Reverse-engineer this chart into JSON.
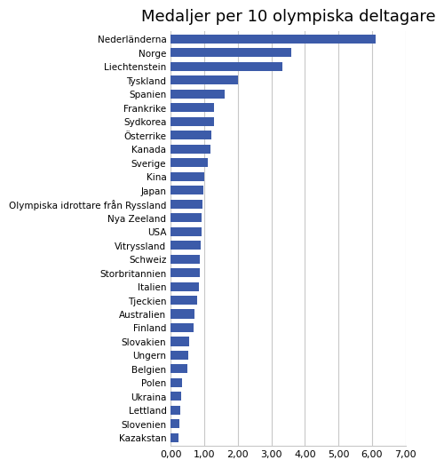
{
  "title": "Medaljer per 10 olympiska deltagare",
  "categories": [
    "Nederländerna",
    "Norge",
    "Liechtenstein",
    "Tyskland",
    "Spanien",
    "Frankrike",
    "Sydkorea",
    "Österrike",
    "Kanada",
    "Sverige",
    "Kina",
    "Japan",
    "Olympiska idrottare från Ryssland",
    "Nya Zeeland",
    "USA",
    "Vitryssland",
    "Schweiz",
    "Storbritannien",
    "Italien",
    "Tjeckien",
    "Australien",
    "Finland",
    "Slovakien",
    "Ungern",
    "Belgien",
    "Polen",
    "Ukraina",
    "Lettland",
    "Slovenien",
    "Kazakstan"
  ],
  "values": [
    6.1,
    3.6,
    3.33,
    2.0,
    1.6,
    1.3,
    1.28,
    1.22,
    1.18,
    1.1,
    1.0,
    0.97,
    0.95,
    0.93,
    0.92,
    0.9,
    0.88,
    0.86,
    0.84,
    0.78,
    0.72,
    0.68,
    0.55,
    0.53,
    0.5,
    0.35,
    0.3,
    0.28,
    0.27,
    0.22
  ],
  "bar_color": "#3C5BA9",
  "xlim": [
    0,
    7.0
  ],
  "xticks": [
    0.0,
    1.0,
    2.0,
    3.0,
    4.0,
    5.0,
    6.0,
    7.0
  ],
  "xticklabels": [
    "0,00",
    "1,00",
    "2,00",
    "3,00",
    "4,00",
    "5,00",
    "6,00",
    "7,00"
  ],
  "grid_color": "#C8C8C8",
  "background_color": "#FFFFFF",
  "title_fontsize": 13,
  "label_fontsize": 7.5,
  "tick_fontsize": 8.0,
  "bar_height": 0.65
}
